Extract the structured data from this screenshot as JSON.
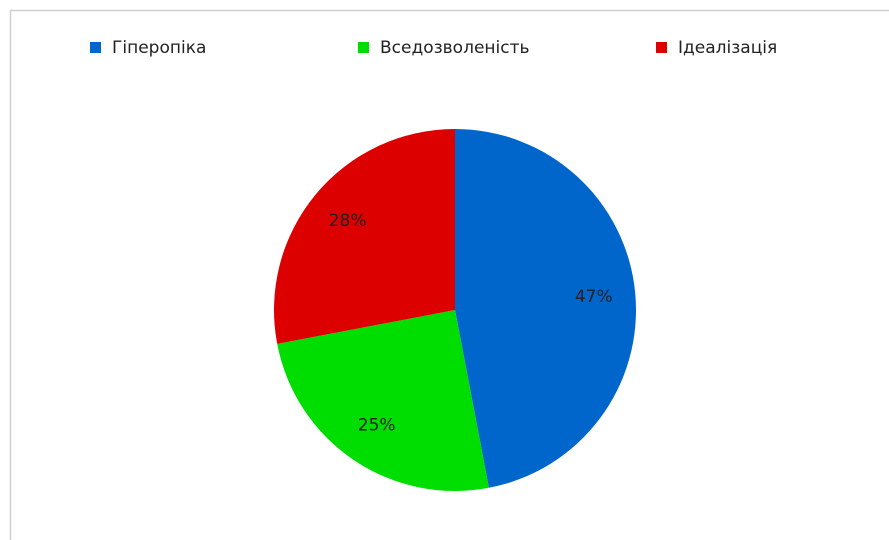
{
  "chart_data": {
    "type": "pie",
    "categories": [
      "Гіперопіка",
      "Вседозволеність",
      "Ідеалізація"
    ],
    "values": [
      47,
      25,
      28
    ],
    "value_labels": [
      "47%",
      "25%",
      "28%"
    ],
    "colors": [
      "#0066cc",
      "#00dd00",
      "#dd0000"
    ],
    "legend": "top"
  }
}
